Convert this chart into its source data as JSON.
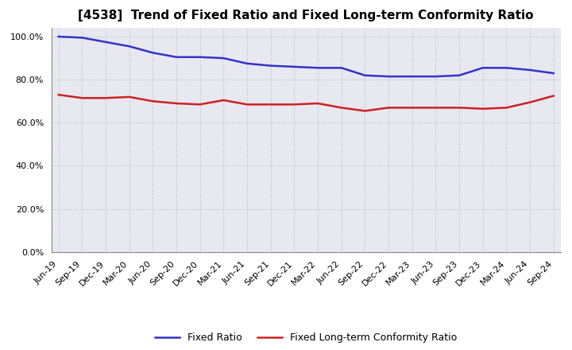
{
  "title": "[4538]  Trend of Fixed Ratio and Fixed Long-term Conformity Ratio",
  "x_labels": [
    "Jun-19",
    "Sep-19",
    "Dec-19",
    "Mar-20",
    "Jun-20",
    "Sep-20",
    "Dec-20",
    "Mar-21",
    "Jun-21",
    "Sep-21",
    "Dec-21",
    "Mar-22",
    "Jun-22",
    "Sep-22",
    "Dec-22",
    "Mar-23",
    "Jun-23",
    "Sep-23",
    "Dec-23",
    "Mar-24",
    "Jun-24",
    "Sep-24"
  ],
  "fixed_ratio": [
    100.0,
    99.5,
    97.5,
    95.5,
    92.5,
    90.5,
    90.5,
    90.0,
    87.5,
    86.5,
    86.0,
    85.5,
    85.5,
    82.0,
    81.5,
    81.5,
    81.5,
    82.0,
    85.5,
    85.5,
    84.5,
    83.0
  ],
  "fixed_lt_ratio": [
    73.0,
    71.5,
    71.5,
    72.0,
    70.0,
    69.0,
    68.5,
    70.5,
    68.5,
    68.5,
    68.5,
    69.0,
    67.0,
    65.5,
    67.0,
    67.0,
    67.0,
    67.0,
    66.5,
    67.0,
    69.5,
    72.5
  ],
  "fixed_ratio_color": "#3333CC",
  "fixed_lt_ratio_color": "#CC2222",
  "ylim": [
    0,
    104
  ],
  "yticks": [
    0,
    20,
    40,
    60,
    80,
    100
  ],
  "background_color": "#FFFFFF",
  "plot_bg_color": "#E8E8F0",
  "grid_color": "#BBBBCC",
  "line_width": 1.8,
  "title_fontsize": 11,
  "tick_fontsize": 8,
  "legend_fontsize": 9
}
